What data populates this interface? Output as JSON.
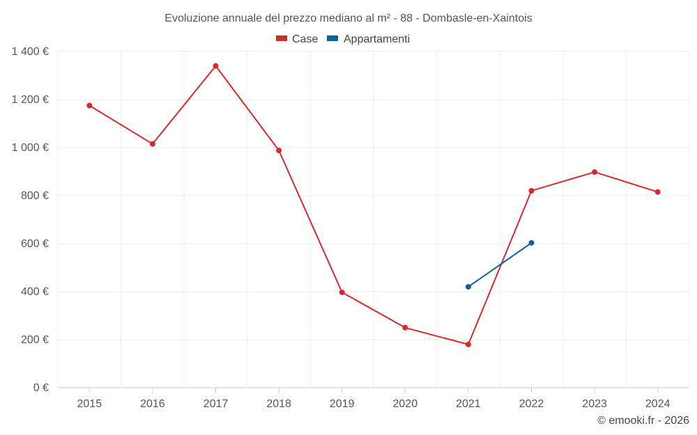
{
  "chart_data": {
    "type": "line",
    "title": "Evoluzione annuale del prezzo mediano al m² - 88 - Dombasle-en-Xaintois",
    "xlabel": "",
    "ylabel": "",
    "categories": [
      "2015",
      "2016",
      "2017",
      "2018",
      "2019",
      "2020",
      "2021",
      "2022",
      "2023",
      "2024"
    ],
    "ylim": [
      0,
      1400
    ],
    "yticks": [
      0,
      200,
      400,
      600,
      800,
      1000,
      1200,
      1400
    ],
    "ytick_labels": [
      "0 €",
      "200 €",
      "400 €",
      "600 €",
      "800 €",
      "1 000 €",
      "1 200 €",
      "1 400 €"
    ],
    "grid": true,
    "legend_position": "top-center",
    "series": [
      {
        "name": "Case",
        "color": "#d42a2a",
        "values": [
          1175,
          1015,
          1340,
          988,
          397,
          250,
          180,
          820,
          898,
          815
        ]
      },
      {
        "name": "Appartamenti",
        "color": "#0e6299",
        "values": [
          null,
          null,
          null,
          null,
          null,
          null,
          420,
          603,
          null,
          null
        ]
      }
    ]
  },
  "credit": "© emooki.fr - 2026"
}
